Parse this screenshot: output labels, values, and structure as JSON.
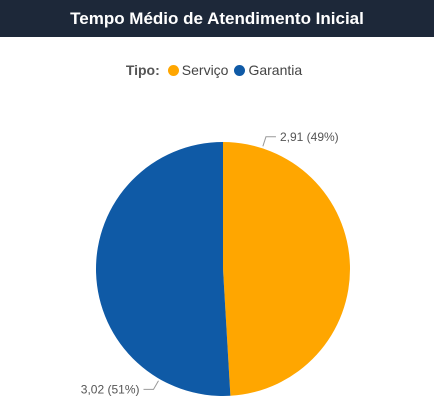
{
  "title": "Tempo Médio de Atendimento Inicial",
  "legend": {
    "title": "Tipo:",
    "items": [
      {
        "label": "Serviço",
        "color": "#FFA600"
      },
      {
        "label": "Garantia",
        "color": "#0F5AA6"
      }
    ]
  },
  "chart_data": {
    "type": "pie",
    "legend_position": "top-center",
    "slices": [
      {
        "name": "Serviço",
        "value": 2.91,
        "percent": 49,
        "label": "2,91 (49%)",
        "color": "#FFA600"
      },
      {
        "name": "Garantia",
        "value": 3.02,
        "percent": 51,
        "label": "3,02 (51%)",
        "color": "#0F5AA6"
      }
    ]
  }
}
